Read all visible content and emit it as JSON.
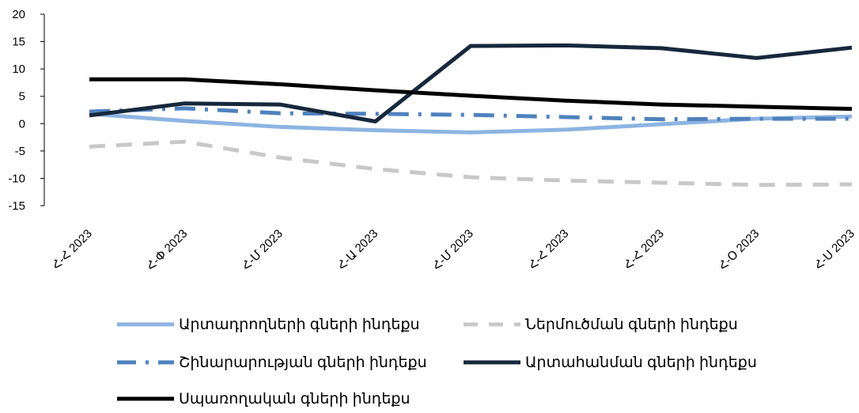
{
  "chart_data": {
    "type": "line",
    "title": "",
    "xlabel": "",
    "ylabel": "",
    "categories": [
      "Հ-Հ 2023",
      "Հ-Փ 2023",
      "Հ-Մ 2023",
      "Հ-Ա 2023",
      "Հ-Մ 2023",
      "Հ-Հ 2023",
      "Հ-Հ 2023",
      "Հ-Օ 2023",
      "Հ-Ս 2023"
    ],
    "ylim": [
      -15,
      20
    ],
    "yticks": [
      20,
      15,
      10,
      5,
      0,
      -5,
      -10,
      -15
    ],
    "grid": false,
    "legend_position": "bottom",
    "series": [
      {
        "name": "Արտադրողների գների ինդեքս",
        "color": "#8DB4E2",
        "style": "solid",
        "values": [
          1.8,
          0.5,
          -0.6,
          -1.2,
          -1.6,
          -1.1,
          -0.1,
          0.9,
          1.3
        ]
      },
      {
        "name": "Ներմուծման գների ինդեքս",
        "color": "#C8C8C8",
        "style": "dash",
        "values": [
          -4.2,
          -3.3,
          -6.2,
          -8.3,
          -9.8,
          -10.4,
          -10.8,
          -11.2,
          -11.1
        ]
      },
      {
        "name": "Շինարարության գների ինդեքս",
        "color": "#4F81BD",
        "style": "dashdot",
        "values": [
          2.2,
          2.8,
          1.9,
          1.8,
          1.6,
          1.2,
          0.8,
          0.9,
          0.9
        ]
      },
      {
        "name": "Արտահանման գների ինդեքս",
        "color": "#17283D",
        "style": "solid",
        "values": [
          1.5,
          3.7,
          3.5,
          0.4,
          14.2,
          14.3,
          13.8,
          12.0,
          13.9
        ]
      },
      {
        "name": "Սպառողական գների ինդեքս",
        "color": "#000000",
        "style": "solid",
        "values": [
          8.1,
          8.1,
          7.2,
          6.1,
          5.1,
          4.2,
          3.5,
          3.1,
          2.7
        ]
      }
    ]
  }
}
